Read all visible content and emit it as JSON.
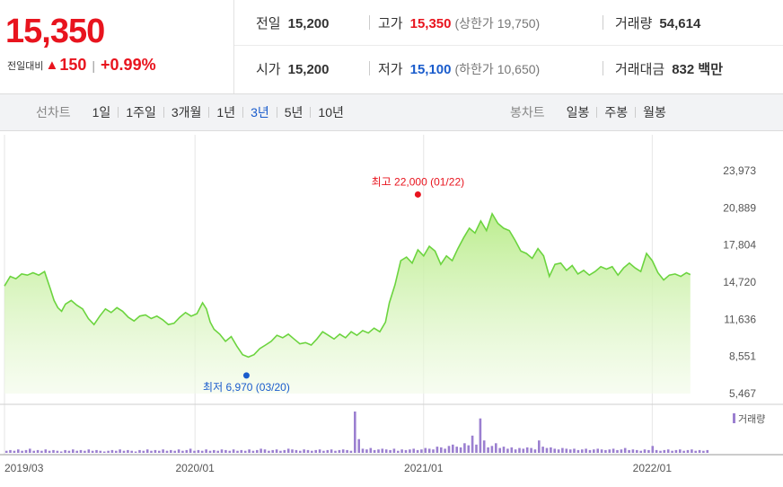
{
  "quote": {
    "price": "15,350",
    "change_label": "전일대비",
    "change_arrow": "▲",
    "change_value": "150",
    "change_sep": "|",
    "change_pct": "+0.99%",
    "colors": {
      "up": "#e8141e",
      "down": "#1a5ccc"
    }
  },
  "stats": {
    "prev_close": {
      "label": "전일",
      "value": "15,200"
    },
    "high": {
      "label": "고가",
      "value": "15,350",
      "sub": "(상한가 19,750)"
    },
    "volume": {
      "label": "거래량",
      "value": "54,614"
    },
    "open": {
      "label": "시가",
      "value": "15,200"
    },
    "low": {
      "label": "저가",
      "value": "15,100",
      "sub": "(하한가 10,650)"
    },
    "amount": {
      "label": "거래대금",
      "value": "832 백만"
    }
  },
  "line_chart_tabs": {
    "label": "선차트",
    "items": [
      "1일",
      "1주일",
      "3개월",
      "1년",
      "3년",
      "5년",
      "10년"
    ],
    "active": "3년"
  },
  "candle_chart_tabs": {
    "label": "봉차트",
    "items": [
      "일봉",
      "주봉",
      "월봉"
    ]
  },
  "chart_data": {
    "type": "area",
    "y_ticks": [
      "23,973",
      "20,889",
      "17,804",
      "14,720",
      "11,636",
      "8,551",
      "5,467"
    ],
    "ylim": [
      5467,
      23973
    ],
    "x_ticks": [
      "2019/03",
      "2020/01",
      "2021/01",
      "2022/01"
    ],
    "x_tick_t": [
      0.0,
      10.0,
      22.0,
      34.0
    ],
    "xlim": [
      0.0,
      37.0
    ],
    "series": [
      {
        "values": [
          [
            0.0,
            14400
          ],
          [
            0.3,
            15200
          ],
          [
            0.6,
            15000
          ],
          [
            0.9,
            15400
          ],
          [
            1.2,
            15300
          ],
          [
            1.5,
            15500
          ],
          [
            1.8,
            15300
          ],
          [
            2.1,
            15600
          ],
          [
            2.4,
            14200
          ],
          [
            2.6,
            13200
          ],
          [
            2.8,
            12600
          ],
          [
            3.0,
            12300
          ],
          [
            3.2,
            12900
          ],
          [
            3.5,
            13200
          ],
          [
            3.8,
            12800
          ],
          [
            4.1,
            12500
          ],
          [
            4.4,
            11700
          ],
          [
            4.7,
            11200
          ],
          [
            5.0,
            11900
          ],
          [
            5.3,
            12500
          ],
          [
            5.6,
            12200
          ],
          [
            5.9,
            12600
          ],
          [
            6.2,
            12300
          ],
          [
            6.5,
            11800
          ],
          [
            6.8,
            11500
          ],
          [
            7.1,
            11900
          ],
          [
            7.4,
            12000
          ],
          [
            7.7,
            11700
          ],
          [
            8.0,
            11900
          ],
          [
            8.3,
            11600
          ],
          [
            8.6,
            11200
          ],
          [
            8.9,
            11300
          ],
          [
            9.2,
            11800
          ],
          [
            9.5,
            12200
          ],
          [
            9.8,
            11900
          ],
          [
            10.1,
            12100
          ],
          [
            10.4,
            13000
          ],
          [
            10.6,
            12500
          ],
          [
            10.8,
            11400
          ],
          [
            11.0,
            10800
          ],
          [
            11.3,
            10400
          ],
          [
            11.6,
            9800
          ],
          [
            11.9,
            10200
          ],
          [
            12.2,
            9400
          ],
          [
            12.5,
            8700
          ],
          [
            12.8,
            8500
          ],
          [
            13.1,
            8700
          ],
          [
            13.4,
            9200
          ],
          [
            13.7,
            9500
          ],
          [
            14.0,
            9800
          ],
          [
            14.3,
            10300
          ],
          [
            14.6,
            10100
          ],
          [
            14.9,
            10400
          ],
          [
            15.2,
            10000
          ],
          [
            15.5,
            9600
          ],
          [
            15.8,
            9700
          ],
          [
            16.1,
            9500
          ],
          [
            16.4,
            10000
          ],
          [
            16.7,
            10600
          ],
          [
            17.0,
            10300
          ],
          [
            17.3,
            10000
          ],
          [
            17.6,
            10400
          ],
          [
            17.9,
            10100
          ],
          [
            18.2,
            10600
          ],
          [
            18.5,
            10300
          ],
          [
            18.8,
            10700
          ],
          [
            19.1,
            10500
          ],
          [
            19.4,
            10900
          ],
          [
            19.7,
            10600
          ],
          [
            20.0,
            11400
          ],
          [
            20.2,
            13000
          ],
          [
            20.5,
            14500
          ],
          [
            20.8,
            16500
          ],
          [
            21.1,
            16800
          ],
          [
            21.4,
            16300
          ],
          [
            21.7,
            17400
          ],
          [
            22.0,
            16900
          ],
          [
            22.3,
            17700
          ],
          [
            22.6,
            17300
          ],
          [
            22.9,
            16200
          ],
          [
            23.2,
            16900
          ],
          [
            23.5,
            16500
          ],
          [
            23.8,
            17500
          ],
          [
            24.1,
            18400
          ],
          [
            24.4,
            19200
          ],
          [
            24.7,
            18800
          ],
          [
            25.0,
            19800
          ],
          [
            25.3,
            19000
          ],
          [
            25.6,
            20400
          ],
          [
            25.9,
            19600
          ],
          [
            26.2,
            19200
          ],
          [
            26.5,
            19000
          ],
          [
            26.8,
            18200
          ],
          [
            27.1,
            17300
          ],
          [
            27.4,
            17100
          ],
          [
            27.7,
            16700
          ],
          [
            28.0,
            17500
          ],
          [
            28.3,
            16900
          ],
          [
            28.6,
            15200
          ],
          [
            28.9,
            16200
          ],
          [
            29.2,
            16300
          ],
          [
            29.5,
            15700
          ],
          [
            29.8,
            16100
          ],
          [
            30.1,
            15400
          ],
          [
            30.4,
            15700
          ],
          [
            30.7,
            15300
          ],
          [
            31.0,
            15600
          ],
          [
            31.3,
            16000
          ],
          [
            31.6,
            15800
          ],
          [
            31.9,
            16000
          ],
          [
            32.2,
            15300
          ],
          [
            32.5,
            15900
          ],
          [
            32.8,
            16300
          ],
          [
            33.1,
            15900
          ],
          [
            33.4,
            15600
          ],
          [
            33.7,
            17100
          ],
          [
            34.0,
            16500
          ],
          [
            34.3,
            15500
          ],
          [
            34.6,
            14900
          ],
          [
            34.9,
            15300
          ],
          [
            35.2,
            15400
          ],
          [
            35.5,
            15200
          ],
          [
            35.8,
            15500
          ],
          [
            36.0,
            15350
          ]
        ]
      }
    ],
    "annotations": {
      "high": {
        "text": "최고 22,000 (01/22)",
        "t": 21.7,
        "value": 22000
      },
      "low": {
        "text": "최저 6,970 (03/20)",
        "t": 12.7,
        "value": 6970
      }
    },
    "volume": {
      "legend": "거래량",
      "values": [
        3,
        4,
        3,
        5,
        3,
        4,
        6,
        3,
        4,
        3,
        5,
        3,
        4,
        3,
        2,
        4,
        3,
        5,
        3,
        4,
        3,
        5,
        3,
        4,
        3,
        2,
        3,
        4,
        3,
        5,
        3,
        4,
        3,
        2,
        4,
        3,
        5,
        3,
        4,
        3,
        5,
        3,
        4,
        3,
        5,
        3,
        4,
        6,
        3,
        4,
        3,
        5,
        3,
        4,
        3,
        5,
        4,
        3,
        5,
        3,
        4,
        3,
        5,
        3,
        4,
        6,
        5,
        3,
        4,
        5,
        3,
        4,
        6,
        5,
        4,
        3,
        5,
        4,
        3,
        4,
        5,
        3,
        4,
        5,
        3,
        4,
        5,
        4,
        3,
        60,
        20,
        6,
        5,
        7,
        4,
        5,
        6,
        5,
        4,
        6,
        3,
        5,
        4,
        5,
        6,
        4,
        5,
        7,
        6,
        5,
        9,
        8,
        6,
        10,
        12,
        9,
        8,
        14,
        11,
        25,
        12,
        50,
        18,
        8,
        10,
        14,
        7,
        9,
        6,
        8,
        5,
        7,
        6,
        8,
        7,
        5,
        18,
        9,
        7,
        8,
        6,
        5,
        7,
        6,
        5,
        6,
        4,
        5,
        6,
        4,
        5,
        6,
        5,
        4,
        5,
        6,
        4,
        5,
        7,
        4,
        5,
        4,
        3,
        5,
        4,
        10,
        4,
        3,
        4,
        5,
        3,
        4,
        5,
        3,
        4,
        5,
        3,
        4,
        3,
        4
      ],
      "max": 60
    }
  }
}
